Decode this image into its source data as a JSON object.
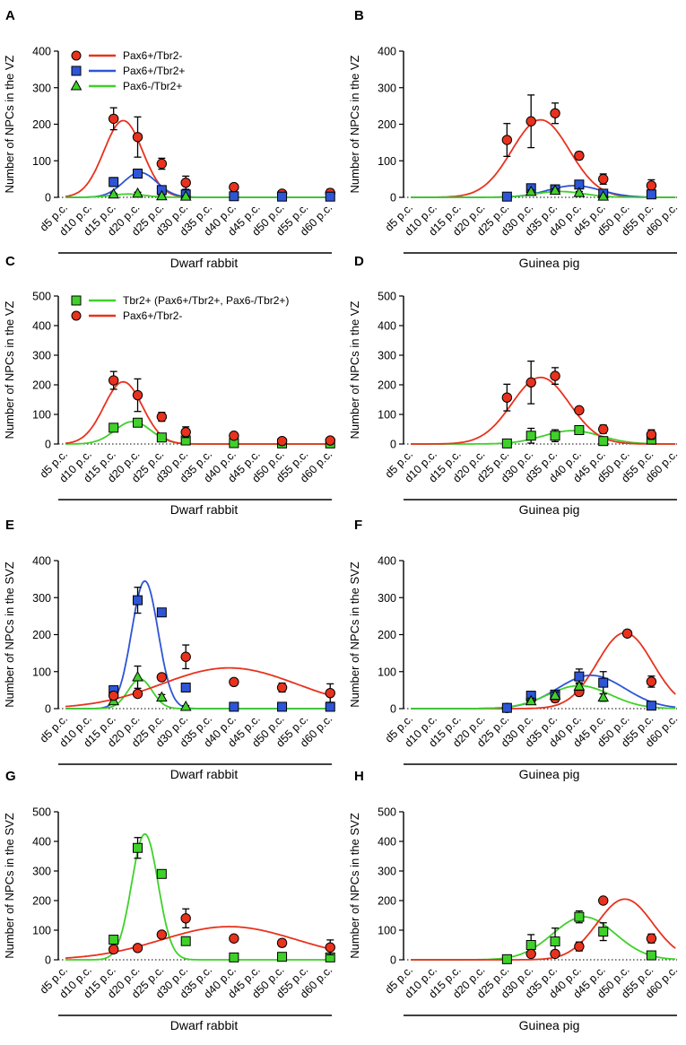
{
  "colors": {
    "Pax6+/Tbr2-": "#e8321e",
    "Pax6+/Tbr2+": "#2d55d6",
    "Pax6-/Tbr2+": "#3fd12a",
    "Tbr2+ (Pax6+/Tbr2+,  Pax6-/Tbr2+)": "#3fd12a"
  },
  "categories": [
    "d5 p.c.",
    "d10 p.c.",
    "d15 p.c.",
    "d20 p.c.",
    "d25 p.c.",
    "d30 p.c.",
    "d35 p.c.",
    "d40 p.c.",
    "d45 p.c.",
    "d50 p.c.",
    "d55 p.c.",
    "d60 p.c."
  ],
  "chart_data": [
    {
      "panel": "A",
      "type": "scatter",
      "ylabel": "Number of NPCs in the VZ",
      "xlabel": "Dwarf rabbit",
      "ylim": [
        0,
        400
      ],
      "yticks": [
        0,
        100,
        200,
        300,
        400
      ],
      "legend": [
        "Pax6+/Tbr2-",
        "Pax6+/Tbr2+",
        "Pax6-/Tbr2+"
      ],
      "series": [
        {
          "name": "Pax6+/Tbr2-",
          "marker": "circle",
          "points": [
            [
              2,
              215,
              30
            ],
            [
              3,
              165,
              55
            ],
            [
              4,
              92,
              15
            ],
            [
              5,
              40,
              18
            ],
            [
              7,
              28,
              5
            ],
            [
              9,
              10,
              5
            ],
            [
              11,
              12,
              10
            ]
          ],
          "fit": {
            "amp": 210,
            "center": 2.4,
            "sigma": 0.8
          }
        },
        {
          "name": "Pax6+/Tbr2+",
          "marker": "square",
          "points": [
            [
              2,
              42,
              12
            ],
            [
              3,
              65,
              12
            ],
            [
              4,
              20,
              10
            ],
            [
              5,
              8,
              5
            ],
            [
              7,
              3,
              3
            ],
            [
              9,
              2,
              2
            ],
            [
              11,
              2,
              2
            ]
          ],
          "fit": {
            "amp": 68,
            "center": 3.1,
            "sigma": 0.7
          }
        },
        {
          "name": "Pax6-/Tbr2+",
          "marker": "triangle",
          "points": [
            [
              2,
              8,
              3
            ],
            [
              3,
              10,
              4
            ],
            [
              4,
              3,
              2
            ],
            [
              5,
              2,
              2
            ]
          ],
          "fit": {
            "amp": 9,
            "center": 2.6,
            "sigma": 0.7
          }
        }
      ]
    },
    {
      "panel": "B",
      "type": "scatter",
      "ylabel": "Number of NPCs in the VZ",
      "xlabel": "Guinea pig",
      "ylim": [
        0,
        400
      ],
      "yticks": [
        0,
        100,
        200,
        300,
        400
      ],
      "series": [
        {
          "name": "Pax6+/Tbr2-",
          "marker": "circle",
          "points": [
            [
              4,
              157,
              45
            ],
            [
              5,
              208,
              72
            ],
            [
              6,
              230,
              28
            ],
            [
              7,
              114,
              10
            ],
            [
              8,
              50,
              14
            ],
            [
              10,
              32,
              16
            ],
            [
              12,
              18,
              10
            ]
          ],
          "fit": {
            "amp": 212,
            "center": 5.4,
            "sigma": 1.2
          }
        },
        {
          "name": "Pax6+/Tbr2+",
          "marker": "square",
          "points": [
            [
              4,
              2,
              2
            ],
            [
              5,
              25,
              8
            ],
            [
              6,
              22,
              8
            ],
            [
              7,
              35,
              6
            ],
            [
              8,
              10,
              6
            ],
            [
              10,
              8,
              5
            ],
            [
              12,
              5,
              4
            ]
          ],
          "fit": {
            "amp": 32,
            "center": 6.8,
            "sigma": 1.1
          }
        },
        {
          "name": "Pax6-/Tbr2+",
          "marker": "triangle",
          "points": [
            [
              5,
              15,
              5
            ],
            [
              6,
              18,
              5
            ],
            [
              7,
              12,
              4
            ],
            [
              8,
              2,
              2
            ]
          ],
          "fit": {
            "amp": 16,
            "center": 6.2,
            "sigma": 1.0
          }
        }
      ]
    },
    {
      "panel": "C",
      "type": "scatter",
      "ylabel": "Number of NPCs in the VZ",
      "xlabel": "Dwarf rabbit",
      "ylim": [
        0,
        500
      ],
      "yticks": [
        0,
        100,
        200,
        300,
        400,
        500
      ],
      "legend": [
        "Tbr2+ (Pax6+/Tbr2+,  Pax6-/Tbr2+)",
        "Pax6+/Tbr2-"
      ],
      "series": [
        {
          "name": "Tbr2+ (Pax6+/Tbr2+,  Pax6-/Tbr2+)",
          "marker": "square",
          "points": [
            [
              2,
              55,
              10
            ],
            [
              3,
              72,
              14
            ],
            [
              4,
              22,
              8
            ],
            [
              5,
              12,
              5
            ],
            [
              7,
              3,
              3
            ],
            [
              9,
              2,
              2
            ],
            [
              11,
              2,
              2
            ]
          ],
          "fit": {
            "amp": 76,
            "center": 2.8,
            "sigma": 0.75
          }
        },
        {
          "name": "Pax6+/Tbr2-",
          "marker": "circle",
          "points": [
            [
              2,
              215,
              30
            ],
            [
              3,
              165,
              55
            ],
            [
              4,
              92,
              15
            ],
            [
              5,
              40,
              18
            ],
            [
              7,
              28,
              5
            ],
            [
              9,
              10,
              5
            ],
            [
              11,
              12,
              10
            ]
          ],
          "fit": {
            "amp": 210,
            "center": 2.4,
            "sigma": 0.8
          }
        }
      ]
    },
    {
      "panel": "D",
      "type": "scatter",
      "ylabel": "Number of NPCs in the VZ",
      "xlabel": "Guinea pig",
      "ylim": [
        0,
        500
      ],
      "yticks": [
        0,
        100,
        200,
        300,
        400,
        500
      ],
      "series": [
        {
          "name": "Tbr2+ (Pax6+/Tbr2+,  Pax6-/Tbr2+)",
          "marker": "square",
          "points": [
            [
              4,
              2,
              3
            ],
            [
              5,
              28,
              25
            ],
            [
              6,
              28,
              20
            ],
            [
              7,
              47,
              10
            ],
            [
              8,
              10,
              8
            ],
            [
              10,
              15,
              10
            ],
            [
              12,
              8,
              6
            ]
          ],
          "fit": {
            "amp": 45,
            "center": 6.7,
            "sigma": 1.2
          }
        },
        {
          "name": "Pax6+/Tbr2-",
          "marker": "circle",
          "points": [
            [
              4,
              157,
              45
            ],
            [
              5,
              208,
              72
            ],
            [
              6,
              230,
              28
            ],
            [
              7,
              114,
              10
            ],
            [
              8,
              50,
              14
            ],
            [
              10,
              32,
              16
            ],
            [
              12,
              18,
              10
            ]
          ],
          "fit": {
            "amp": 225,
            "center": 5.4,
            "sigma": 1.2
          }
        }
      ]
    },
    {
      "panel": "E",
      "type": "scatter",
      "ylabel": "Number of NPCs in the SVZ",
      "xlabel": "Dwarf rabbit",
      "ylim": [
        0,
        400
      ],
      "yticks": [
        0,
        100,
        200,
        300,
        400
      ],
      "series": [
        {
          "name": "Pax6+/Tbr2+",
          "marker": "square",
          "points": [
            [
              2,
              50,
              10
            ],
            [
              3,
              293,
              35
            ],
            [
              4,
              260,
              10
            ],
            [
              5,
              57,
              10
            ],
            [
              7,
              5,
              3
            ],
            [
              9,
              5,
              5
            ],
            [
              11,
              5,
              5
            ]
          ],
          "fit": {
            "amp": 345,
            "center": 3.3,
            "sigma": 0.55
          }
        },
        {
          "name": "Pax6-/Tbr2+",
          "marker": "triangle",
          "points": [
            [
              2,
              20,
              8
            ],
            [
              3,
              85,
              30
            ],
            [
              4,
              30,
              8
            ],
            [
              5,
              5,
              3
            ]
          ],
          "fit": {
            "amp": 80,
            "center": 3.1,
            "sigma": 0.5
          }
        },
        {
          "name": "Pax6+/Tbr2-",
          "marker": "circle",
          "points": [
            [
              2,
              35,
              10
            ],
            [
              3,
              40,
              8
            ],
            [
              4,
              85,
              8
            ],
            [
              5,
              140,
              32
            ],
            [
              7,
              72,
              8
            ],
            [
              9,
              57,
              12
            ],
            [
              11,
              42,
              25
            ]
          ],
          "fit": {
            "amp": 110,
            "center": 6.8,
            "sigma": 2.8
          }
        }
      ]
    },
    {
      "panel": "F",
      "type": "scatter",
      "ylabel": "Number of NPCs in the SVZ",
      "xlabel": "Guinea pig",
      "ylim": [
        0,
        400
      ],
      "yticks": [
        0,
        100,
        200,
        300,
        400
      ],
      "series": [
        {
          "name": "Pax6+/Tbr2-",
          "marker": "circle",
          "points": [
            [
              4,
              2,
              2
            ],
            [
              5,
              25,
              10
            ],
            [
              6,
              28,
              10
            ],
            [
              7,
              45,
              10
            ],
            [
              9,
              203,
              8
            ],
            [
              10,
              73,
              15
            ],
            [
              12,
              35,
              15
            ]
          ],
          "fit": {
            "amp": 205,
            "center": 8.9,
            "sigma": 1.15
          }
        },
        {
          "name": "Pax6+/Tbr2+",
          "marker": "square",
          "points": [
            [
              4,
              2,
              2
            ],
            [
              5,
              35,
              10
            ],
            [
              6,
              38,
              10
            ],
            [
              7,
              87,
              20
            ],
            [
              8,
              70,
              30
            ],
            [
              10,
              8,
              5
            ],
            [
              12,
              5,
              4
            ]
          ],
          "fit": {
            "amp": 90,
            "center": 7.5,
            "sigma": 1.4
          }
        },
        {
          "name": "Pax6-/Tbr2+",
          "marker": "triangle",
          "points": [
            [
              5,
              20,
              8
            ],
            [
              6,
              35,
              10
            ],
            [
              7,
              60,
              10
            ],
            [
              8,
              30,
              10
            ]
          ],
          "fit": {
            "amp": 62,
            "center": 7.0,
            "sigma": 1.3
          }
        }
      ]
    },
    {
      "panel": "G",
      "type": "scatter",
      "ylabel": "Number of NPCs in the SVZ",
      "xlabel": "Dwarf rabbit",
      "ylim": [
        0,
        500
      ],
      "yticks": [
        0,
        100,
        200,
        300,
        400,
        500
      ],
      "series": [
        {
          "name": "Tbr2+ (Pax6+/Tbr2+,  Pax6-/Tbr2+)",
          "marker": "square",
          "points": [
            [
              2,
              68,
              12
            ],
            [
              3,
              378,
              35
            ],
            [
              4,
              290,
              12
            ],
            [
              5,
              63,
              12
            ],
            [
              7,
              8,
              5
            ],
            [
              9,
              10,
              5
            ],
            [
              11,
              8,
              5
            ]
          ],
          "fit": {
            "amp": 425,
            "center": 3.3,
            "sigma": 0.55
          }
        },
        {
          "name": "Pax6+/Tbr2-",
          "marker": "circle",
          "points": [
            [
              2,
              35,
              12
            ],
            [
              3,
              40,
              8
            ],
            [
              4,
              85,
              8
            ],
            [
              5,
              140,
              32
            ],
            [
              7,
              72,
              8
            ],
            [
              9,
              57,
              12
            ],
            [
              11,
              42,
              25
            ]
          ],
          "fit": {
            "amp": 112,
            "center": 6.8,
            "sigma": 2.8
          }
        }
      ]
    },
    {
      "panel": "H",
      "type": "scatter",
      "ylabel": "Number of NPCs in the SVZ",
      "xlabel": "Guinea pig",
      "ylim": [
        0,
        500
      ],
      "yticks": [
        0,
        100,
        200,
        300,
        400,
        500
      ],
      "series": [
        {
          "name": "Tbr2+ (Pax6+/Tbr2+,  Pax6-/Tbr2+)",
          "marker": "square",
          "points": [
            [
              4,
              2,
              3
            ],
            [
              5,
              50,
              35
            ],
            [
              6,
              62,
              45
            ],
            [
              7,
              145,
              20
            ],
            [
              8,
              95,
              30
            ],
            [
              10,
              15,
              8
            ],
            [
              12,
              10,
              8
            ]
          ],
          "fit": {
            "amp": 145,
            "center": 7.2,
            "sigma": 1.3
          }
        },
        {
          "name": "Pax6+/Tbr2-",
          "marker": "circle",
          "points": [
            [
              5,
              20,
              10
            ],
            [
              6,
              20,
              10
            ],
            [
              7,
              45,
              15
            ],
            [
              8,
              200,
              8
            ],
            [
              10,
              72,
              15
            ],
            [
              12,
              35,
              15
            ]
          ],
          "fit": {
            "amp": 205,
            "center": 8.9,
            "sigma": 1.15
          }
        }
      ]
    }
  ]
}
